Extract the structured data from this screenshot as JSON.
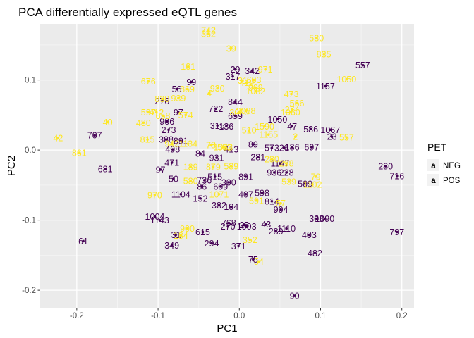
{
  "chart_data": {
    "type": "scatter",
    "title": "PCA differentially expressed eQTL genes",
    "xlabel": "PC1",
    "ylabel": "PC2",
    "xlim": [
      -0.245,
      0.215
    ],
    "ylim": [
      -0.225,
      0.18
    ],
    "x_ticks": [
      -0.2,
      -0.1,
      0.0,
      0.1,
      0.2
    ],
    "x_tick_labels": [
      "-0.2",
      "-0.1",
      "0.0",
      "0.1",
      "0.2"
    ],
    "y_ticks": [
      -0.2,
      -0.1,
      0.0,
      0.1
    ],
    "y_tick_labels": [
      "-0.2",
      "-0.1",
      "0.0",
      "0.1"
    ],
    "grid": true,
    "legend": {
      "title": "PET",
      "position": "right",
      "key_glyph": "a",
      "entries": [
        {
          "label": "NEG",
          "color": "#440154"
        },
        {
          "label": "POS",
          "color": "#FDE725"
        }
      ]
    },
    "series": [
      {
        "name": "NEG",
        "color": "#440154",
        "points": [
          {
            "label": "557",
            "x": 0.152,
            "y": 0.121
          },
          {
            "label": "29",
            "x": -0.005,
            "y": 0.115
          },
          {
            "label": "342",
            "x": 0.016,
            "y": 0.113
          },
          {
            "label": "317",
            "x": -0.008,
            "y": 0.105
          },
          {
            "label": "99",
            "x": -0.059,
            "y": 0.097
          },
          {
            "label": "56",
            "x": -0.077,
            "y": 0.087
          },
          {
            "label": "1157",
            "x": 0.106,
            "y": 0.091
          },
          {
            "label": "276",
            "x": -0.095,
            "y": 0.07
          },
          {
            "label": "844",
            "x": -0.005,
            "y": 0.069
          },
          {
            "label": "722",
            "x": -0.029,
            "y": 0.059
          },
          {
            "label": "97",
            "x": -0.075,
            "y": 0.054
          },
          {
            "label": "659",
            "x": -0.005,
            "y": 0.049
          },
          {
            "label": "1050",
            "x": 0.047,
            "y": 0.044
          },
          {
            "label": "906",
            "x": -0.089,
            "y": 0.041
          },
          {
            "label": "315",
            "x": -0.027,
            "y": 0.035
          },
          {
            "label": "136",
            "x": -0.016,
            "y": 0.034
          },
          {
            "label": "47",
            "x": 0.065,
            "y": 0.034
          },
          {
            "label": "586",
            "x": 0.088,
            "y": 0.03
          },
          {
            "label": "1067",
            "x": 0.112,
            "y": 0.029
          },
          {
            "label": "273",
            "x": -0.087,
            "y": 0.029
          },
          {
            "label": "707",
            "x": -0.178,
            "y": 0.021
          },
          {
            "label": "388",
            "x": -0.09,
            "y": 0.015
          },
          {
            "label": "891",
            "x": -0.072,
            "y": 0.013
          },
          {
            "label": "23",
            "x": 0.114,
            "y": 0.019
          },
          {
            "label": "89",
            "x": 0.017,
            "y": 0.008
          },
          {
            "label": "573",
            "x": 0.04,
            "y": 0.003
          },
          {
            "label": "26",
            "x": 0.055,
            "y": 0.003
          },
          {
            "label": "186",
            "x": 0.065,
            "y": 0.004
          },
          {
            "label": "697",
            "x": 0.089,
            "y": 0.004
          },
          {
            "label": "498",
            "x": -0.082,
            "y": 0.001
          },
          {
            "label": "413",
            "x": -0.01,
            "y": 0.001
          },
          {
            "label": "84",
            "x": -0.048,
            "y": -0.005
          },
          {
            "label": "281",
            "x": 0.023,
            "y": -0.01
          },
          {
            "label": "931",
            "x": -0.028,
            "y": -0.011
          },
          {
            "label": "471",
            "x": -0.083,
            "y": -0.018
          },
          {
            "label": "681",
            "x": -0.165,
            "y": -0.027
          },
          {
            "label": "97",
            "x": -0.097,
            "y": -0.028
          },
          {
            "label": "1147",
            "x": 0.05,
            "y": -0.019
          },
          {
            "label": "936",
            "x": 0.043,
            "y": -0.032
          },
          {
            "label": "228",
            "x": 0.058,
            "y": -0.032
          },
          {
            "label": "891",
            "x": 0.008,
            "y": -0.038
          },
          {
            "label": "280",
            "x": 0.18,
            "y": -0.023
          },
          {
            "label": "716",
            "x": 0.194,
            "y": -0.037
          },
          {
            "label": "50",
            "x": -0.081,
            "y": -0.041
          },
          {
            "label": "736",
            "x": -0.043,
            "y": -0.043
          },
          {
            "label": "515",
            "x": -0.03,
            "y": -0.038
          },
          {
            "label": "300",
            "x": -0.013,
            "y": -0.046
          },
          {
            "label": "509",
            "x": 0.081,
            "y": -0.048
          },
          {
            "label": "86",
            "x": -0.046,
            "y": -0.052
          },
          {
            "label": "609",
            "x": -0.023,
            "y": -0.052
          },
          {
            "label": "1104",
            "x": -0.072,
            "y": -0.063
          },
          {
            "label": "152",
            "x": -0.048,
            "y": -0.069
          },
          {
            "label": "407",
            "x": 0.008,
            "y": -0.063
          },
          {
            "label": "598",
            "x": 0.028,
            "y": -0.061
          },
          {
            "label": "814",
            "x": 0.04,
            "y": -0.073
          },
          {
            "label": "382",
            "x": -0.025,
            "y": -0.079
          },
          {
            "label": "104",
            "x": -0.01,
            "y": -0.081
          },
          {
            "label": "904",
            "x": 0.051,
            "y": -0.085
          },
          {
            "label": "1004",
            "x": -0.104,
            "y": -0.095
          },
          {
            "label": "1143",
            "x": -0.098,
            "y": -0.1
          },
          {
            "label": "308",
            "x": 0.095,
            "y": -0.098
          },
          {
            "label": "1090",
            "x": 0.105,
            "y": -0.098
          },
          {
            "label": "768",
            "x": -0.013,
            "y": -0.104
          },
          {
            "label": "25",
            "x": 0.006,
            "y": -0.107
          },
          {
            "label": "270",
            "x": -0.014,
            "y": -0.109
          },
          {
            "label": "1003",
            "x": 0.009,
            "y": -0.109
          },
          {
            "label": "43",
            "x": 0.033,
            "y": -0.106
          },
          {
            "label": "1110",
            "x": 0.058,
            "y": -0.112
          },
          {
            "label": "289",
            "x": 0.045,
            "y": -0.116
          },
          {
            "label": "797",
            "x": 0.194,
            "y": -0.117
          },
          {
            "label": "615",
            "x": -0.045,
            "y": -0.117
          },
          {
            "label": "403",
            "x": 0.086,
            "y": -0.121
          },
          {
            "label": "31",
            "x": -0.078,
            "y": -0.121
          },
          {
            "label": "61",
            "x": -0.192,
            "y": -0.13
          },
          {
            "label": "294",
            "x": -0.034,
            "y": -0.133
          },
          {
            "label": "349",
            "x": -0.083,
            "y": -0.136
          },
          {
            "label": "371",
            "x": -0.001,
            "y": -0.137
          },
          {
            "label": "482",
            "x": 0.093,
            "y": -0.147
          },
          {
            "label": "75",
            "x": 0.017,
            "y": -0.156
          },
          {
            "label": "90",
            "x": 0.068,
            "y": -0.208
          }
        ]
      },
      {
        "name": "POS",
        "color": "#FDE725",
        "points": [
          {
            "label": "742",
            "x": -0.038,
            "y": 0.171
          },
          {
            "label": "362",
            "x": -0.038,
            "y": 0.166
          },
          {
            "label": "530",
            "x": 0.095,
            "y": 0.16
          },
          {
            "label": "39",
            "x": -0.01,
            "y": 0.145
          },
          {
            "label": "835",
            "x": 0.104,
            "y": 0.137
          },
          {
            "label": "101",
            "x": -0.063,
            "y": 0.119
          },
          {
            "label": "971",
            "x": 0.032,
            "y": 0.115
          },
          {
            "label": "1050",
            "x": 0.132,
            "y": 0.101
          },
          {
            "label": "676",
            "x": -0.112,
            "y": 0.098
          },
          {
            "label": "31",
            "x": 0.004,
            "y": 0.099
          },
          {
            "label": "603",
            "x": 0.018,
            "y": 0.1
          },
          {
            "label": "419",
            "x": 0.009,
            "y": 0.096
          },
          {
            "label": "930",
            "x": -0.027,
            "y": 0.088
          },
          {
            "label": "869",
            "x": -0.064,
            "y": 0.087
          },
          {
            "label": "909",
            "x": 0.02,
            "y": 0.089
          },
          {
            "label": "1082",
            "x": 0.02,
            "y": 0.084
          },
          {
            "label": "473",
            "x": 0.064,
            "y": 0.08
          },
          {
            "label": "830",
            "x": -0.095,
            "y": 0.073
          },
          {
            "label": "939",
            "x": -0.075,
            "y": 0.074
          },
          {
            "label": "4",
            "x": -0.037,
            "y": 0.081
          },
          {
            "label": "566",
            "x": 0.071,
            "y": 0.067
          },
          {
            "label": "274",
            "x": 0.065,
            "y": 0.058
          },
          {
            "label": "597",
            "x": -0.112,
            "y": 0.054
          },
          {
            "label": "412",
            "x": -0.102,
            "y": 0.054
          },
          {
            "label": "658",
            "x": -0.094,
            "y": 0.049
          },
          {
            "label": "2088",
            "x": 0.008,
            "y": 0.056
          },
          {
            "label": "3020",
            "x": 0.0,
            "y": 0.054
          },
          {
            "label": "574",
            "x": -0.066,
            "y": 0.05
          },
          {
            "label": "1060",
            "x": 0.063,
            "y": 0.054
          },
          {
            "label": "40",
            "x": -0.162,
            "y": 0.04
          },
          {
            "label": "480",
            "x": -0.118,
            "y": 0.039
          },
          {
            "label": "1590",
            "x": 0.031,
            "y": 0.034
          },
          {
            "label": "510",
            "x": 0.012,
            "y": 0.028
          },
          {
            "label": "1155",
            "x": 0.036,
            "y": 0.022
          },
          {
            "label": "2",
            "x": 0.069,
            "y": 0.019
          },
          {
            "label": "42",
            "x": -0.223,
            "y": 0.017
          },
          {
            "label": "815",
            "x": -0.113,
            "y": 0.015
          },
          {
            "label": "557",
            "x": 0.132,
            "y": 0.018
          },
          {
            "label": "861",
            "x": -0.197,
            "y": -0.004
          },
          {
            "label": "942",
            "x": -0.083,
            "y": 0.009
          },
          {
            "label": "1134",
            "x": -0.063,
            "y": 0.009
          },
          {
            "label": "78",
            "x": -0.035,
            "y": 0.007
          },
          {
            "label": "592",
            "x": -0.018,
            "y": 0.004
          },
          {
            "label": "1083",
            "x": -0.02,
            "y": 0.004
          },
          {
            "label": "280",
            "x": 0.04,
            "y": -0.013
          },
          {
            "label": "298",
            "x": 0.058,
            "y": -0.019
          },
          {
            "label": "189",
            "x": -0.06,
            "y": -0.024
          },
          {
            "label": "879",
            "x": -0.032,
            "y": -0.024
          },
          {
            "label": "589",
            "x": -0.01,
            "y": -0.023
          },
          {
            "label": "79",
            "x": 0.094,
            "y": -0.038
          },
          {
            "label": "1102",
            "x": 0.09,
            "y": -0.049
          },
          {
            "label": "539",
            "x": 0.061,
            "y": -0.045
          },
          {
            "label": "970",
            "x": -0.104,
            "y": -0.064
          },
          {
            "label": "580",
            "x": -0.06,
            "y": -0.044
          },
          {
            "label": "1071",
            "x": -0.025,
            "y": -0.063
          },
          {
            "label": "591",
            "x": 0.021,
            "y": -0.072
          },
          {
            "label": "57",
            "x": 0.051,
            "y": -0.076
          },
          {
            "label": "900",
            "x": -0.064,
            "y": -0.112
          },
          {
            "label": "184",
            "x": -0.072,
            "y": -0.122
          },
          {
            "label": "352",
            "x": 0.013,
            "y": -0.128
          },
          {
            "label": "54",
            "x": 0.024,
            "y": -0.159
          }
        ]
      }
    ]
  }
}
